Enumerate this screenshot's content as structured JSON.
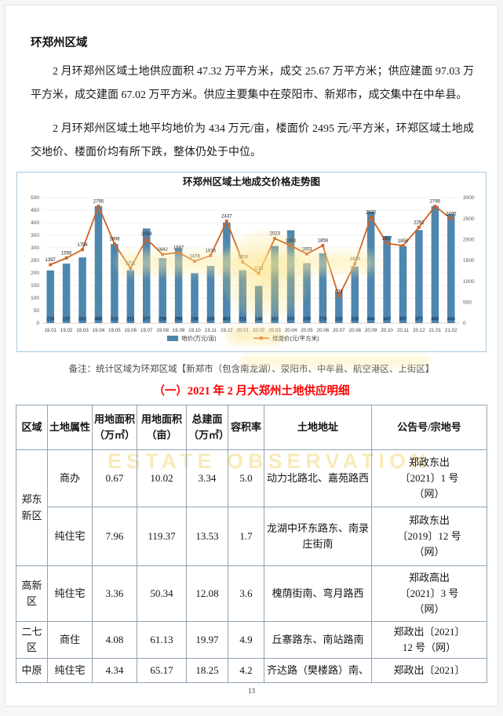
{
  "doc": {
    "heading": "环郑州区域",
    "para1": "2 月环郑州区域土地供应面积 47.32 万平方米，成交 25.67 万平方米；供应建面 97.03 万平方米，成交建面 67.02 万平方米。供应主要集中在荥阳市、新郑市，成交集中在中牟县。",
    "para2": "2 月环郑州区域土地平均地价为 434 万元/亩，楼面价 2495 元/平方米，环郑区域土地成交地价、楼面价均有所下跌，整体仍处于中位。",
    "note": "备注：统计区域为环郑区域【新郑市（包含南龙湖）、荥阳市、中牟县、航空港区、上街区】",
    "table_title": "（一）2021 年 2 月大郑州土地供应明细",
    "page_number": "13",
    "watermark_text": "ESTATE OBSERVATION"
  },
  "chart_data": {
    "type": "bar",
    "title": "环郑州区域土地成交价格走势图",
    "categories": [
      "19.01",
      "19.02",
      "19.03",
      "19.04",
      "19.05",
      "19.06",
      "19.07",
      "19.08",
      "19.09",
      "19.10",
      "19.11",
      "19.12",
      "20.01",
      "20.02",
      "20.03",
      "20.04",
      "20.05",
      "20.06",
      "20.07",
      "20.08",
      "20.09",
      "20.10",
      "20.11",
      "20.12",
      "21.01",
      "21.02"
    ],
    "series": [
      {
        "name": "地价(万元/亩)",
        "type": "bar",
        "axis": "left",
        "color": "#4e86ae",
        "label_color": "#17375e",
        "values": [
          210,
          237,
          262,
          466,
          315,
          211,
          377,
          259,
          298,
          199,
          228,
          401,
          211,
          148,
          307,
          370,
          239,
          278,
          123,
          226,
          444,
          347,
          307,
          371,
          466,
          434
        ]
      },
      {
        "name": "楼面价(元/平方米)",
        "type": "line",
        "axis": "right",
        "color": "#d2611f",
        "label_color": "#222222",
        "values": [
          1397,
          1556,
          1756,
          2795,
          1896,
          1311,
          2014,
          1642,
          1687,
          1478,
          1616,
          2437,
          1458,
          1191,
          2023,
          1850,
          1653,
          1856,
          639,
          1420,
          2532,
          1907,
          1850,
          2291,
          2795,
          2495
        ]
      }
    ],
    "left_axis": {
      "min": 0,
      "max": 500,
      "step": 50
    },
    "right_axis": {
      "min": 0,
      "max": 3000,
      "step": 500
    },
    "grid": true,
    "legend_position": "bottom"
  },
  "table": {
    "headers": [
      "区域",
      "土地属性",
      "用地面积\n（万㎡）",
      "用地面积\n（亩）",
      "总建面\n（万㎡）",
      "容积率",
      "土地地址",
      "公告号/宗地号"
    ],
    "rows": [
      {
        "region": "郑东新区",
        "rowspan": 2,
        "cells": [
          "商办",
          "0.67",
          "10.02",
          "3.34",
          "5.0",
          "动力北路北、嘉苑路西",
          "郑政东出\n〔2021〕1 号\n（网）"
        ]
      },
      {
        "cells": [
          "纯住宅",
          "7.96",
          "119.37",
          "13.53",
          "1.7",
          "龙湖中环东路东、南录庄街南",
          "郑政东出\n〔2019〕12 号\n（网）"
        ]
      },
      {
        "region": "高新区",
        "rowspan": 1,
        "cells": [
          "纯住宅",
          "3.36",
          "50.34",
          "12.08",
          "3.6",
          "槐荫街南、弯月路西",
          "郑政高出\n〔2021〕3 号\n（网）"
        ]
      },
      {
        "region": "二七区",
        "rowspan": 1,
        "cells": [
          "商住",
          "4.08",
          "61.13",
          "19.97",
          "4.9",
          "丘寨路东、南站路南",
          "郑政出〔2021〕\n12 号（网）"
        ]
      },
      {
        "region": "中原",
        "rowspan": 1,
        "cells": [
          "纯住宅",
          "4.34",
          "65.17",
          "18.25",
          "4.2",
          "齐达路（樊楼路）南、",
          "郑政出〔2021〕"
        ]
      }
    ]
  }
}
